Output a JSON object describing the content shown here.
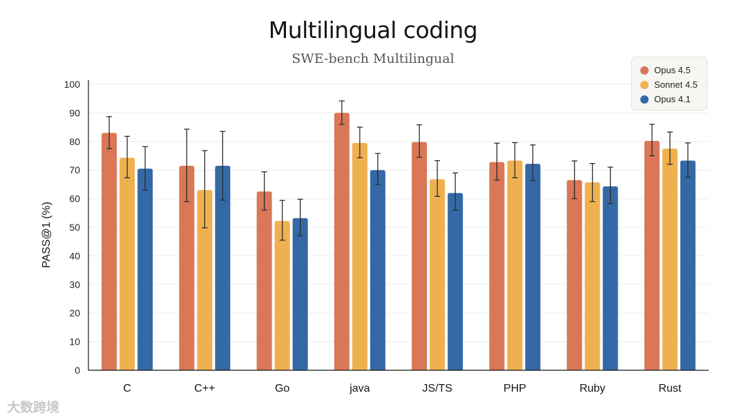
{
  "watermark": "大数跨境",
  "chart_data": {
    "type": "bar",
    "title": "Multilingual coding",
    "subtitle": "SWE-bench Multilingual",
    "xlabel": "",
    "ylabel": "PASS@1 (%)",
    "ylim": [
      0,
      100
    ],
    "yticks": [
      0,
      10,
      20,
      30,
      40,
      50,
      60,
      70,
      80,
      90,
      100
    ],
    "grid": true,
    "legend_position": "top-right",
    "categories": [
      "C",
      "C++",
      "Go",
      "java",
      "JS/TS",
      "PHP",
      "Ruby",
      "Rust"
    ],
    "series": [
      {
        "name": "Opus 4.5",
        "color": "#d97757",
        "values": [
          83,
          71.5,
          62.5,
          90,
          79.8,
          72.8,
          66.5,
          80.2
        ],
        "error_low": [
          77.5,
          59,
          56,
          86,
          74.5,
          66.5,
          60,
          75
        ],
        "error_high": [
          88.7,
          84.3,
          69.4,
          94.2,
          85.8,
          79.4,
          73.2,
          86
        ]
      },
      {
        "name": "Sonnet 4.5",
        "color": "#efb150",
        "values": [
          74.3,
          63,
          52.2,
          79.5,
          66.8,
          73.3,
          65.7,
          77.5
        ],
        "error_low": [
          67.3,
          49.8,
          45.5,
          74.3,
          60.8,
          67.3,
          59,
          72
        ],
        "error_high": [
          81.8,
          76.8,
          59.4,
          85,
          73.3,
          79.6,
          72.3,
          83.3
        ]
      },
      {
        "name": "Opus 4.1",
        "color": "#3569a5",
        "values": [
          70.5,
          71.5,
          53.2,
          70,
          62,
          72.2,
          64.3,
          73.3
        ],
        "error_low": [
          63,
          59.5,
          47,
          65,
          56,
          66.3,
          58.3,
          67.5
        ],
        "error_high": [
          78.2,
          83.5,
          59.8,
          75.8,
          69,
          78.8,
          71,
          79.5
        ]
      }
    ]
  }
}
